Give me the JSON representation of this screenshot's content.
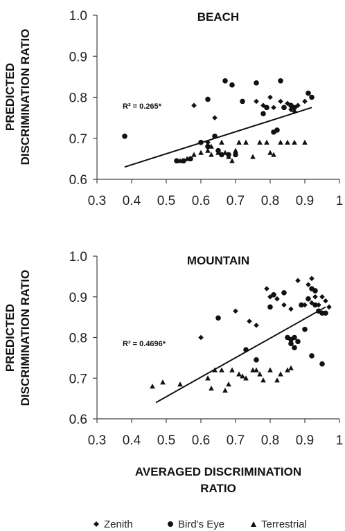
{
  "figure": {
    "shared_ylabel": [
      "PREDICTED",
      "DISCRIMINATION RATIO"
    ],
    "shared_xlabel": [
      "AVERAGED DISCRIMINATION",
      "RATIO"
    ],
    "legend": [
      {
        "symbol": "diamond",
        "label": "Zenith"
      },
      {
        "symbol": "circle",
        "label": "Bird's Eye"
      },
      {
        "symbol": "triangle",
        "label": "Terrestrial"
      }
    ]
  },
  "chart_data": [
    {
      "type": "scatter",
      "title": "BEACH",
      "xlim": [
        0.3,
        1
      ],
      "ylim": [
        0.6,
        1.0
      ],
      "xticks": [
        "0.3",
        "0.4",
        "0.5",
        "0.6",
        "0.7",
        "0.8",
        "0.9",
        "1"
      ],
      "yticks": [
        "0.6",
        "0.7",
        "0.8",
        "0.9",
        "1.0"
      ],
      "annotation": "R² = 0.265*",
      "trendline": [
        [
          0.38,
          0.63
        ],
        [
          0.92,
          0.775
        ]
      ],
      "series": [
        {
          "name": "Zenith",
          "marker": "diamond",
          "points": [
            [
              0.58,
              0.78
            ],
            [
              0.64,
              0.75
            ],
            [
              0.62,
              0.69
            ],
            [
              0.78,
              0.78
            ],
            [
              0.8,
              0.8
            ],
            [
              0.84,
              0.775
            ],
            [
              0.86,
              0.77
            ],
            [
              0.88,
              0.78
            ],
            [
              0.85,
              0.785
            ],
            [
              0.87,
              0.765
            ],
            [
              0.83,
              0.79
            ],
            [
              0.76,
              0.79
            ],
            [
              0.9,
              0.79
            ],
            [
              0.81,
              0.775
            ]
          ]
        },
        {
          "name": "Bird's Eye",
          "marker": "circle",
          "points": [
            [
              0.38,
              0.705
            ],
            [
              0.62,
              0.795
            ],
            [
              0.67,
              0.84
            ],
            [
              0.69,
              0.83
            ],
            [
              0.72,
              0.79
            ],
            [
              0.76,
              0.835
            ],
            [
              0.78,
              0.76
            ],
            [
              0.79,
              0.775
            ],
            [
              0.82,
              0.72
            ],
            [
              0.83,
              0.84
            ],
            [
              0.84,
              0.775
            ],
            [
              0.86,
              0.78
            ],
            [
              0.87,
              0.775
            ],
            [
              0.91,
              0.81
            ],
            [
              0.92,
              0.8
            ],
            [
              0.64,
              0.705
            ],
            [
              0.65,
              0.67
            ],
            [
              0.66,
              0.66
            ],
            [
              0.68,
              0.66
            ],
            [
              0.7,
              0.66
            ],
            [
              0.55,
              0.645
            ],
            [
              0.57,
              0.65
            ],
            [
              0.6,
              0.69
            ],
            [
              0.62,
              0.68
            ],
            [
              0.81,
              0.715
            ],
            [
              0.53,
              0.645
            ]
          ]
        },
        {
          "name": "Terrestrial",
          "marker": "triangle",
          "points": [
            [
              0.54,
              0.645
            ],
            [
              0.56,
              0.65
            ],
            [
              0.58,
              0.66
            ],
            [
              0.6,
              0.665
            ],
            [
              0.62,
              0.67
            ],
            [
              0.63,
              0.68
            ],
            [
              0.66,
              0.69
            ],
            [
              0.67,
              0.665
            ],
            [
              0.68,
              0.655
            ],
            [
              0.69,
              0.645
            ],
            [
              0.7,
              0.67
            ],
            [
              0.71,
              0.69
            ],
            [
              0.73,
              0.69
            ],
            [
              0.75,
              0.655
            ],
            [
              0.77,
              0.69
            ],
            [
              0.79,
              0.69
            ],
            [
              0.8,
              0.665
            ],
            [
              0.81,
              0.66
            ],
            [
              0.83,
              0.69
            ],
            [
              0.85,
              0.69
            ],
            [
              0.87,
              0.69
            ],
            [
              0.9,
              0.69
            ],
            [
              0.63,
              0.66
            ],
            [
              0.65,
              0.665
            ]
          ]
        }
      ]
    },
    {
      "type": "scatter",
      "title": "MOUNTAIN",
      "xlim": [
        0.3,
        1
      ],
      "ylim": [
        0.6,
        1.0
      ],
      "xticks": [
        "0.3",
        "0.4",
        "0.5",
        "0.6",
        "0.7",
        "0.8",
        "0.9",
        "1"
      ],
      "yticks": [
        "0.6",
        "0.7",
        "0.8",
        "0.9",
        "1.0"
      ],
      "annotation": "R² = 0.4696*",
      "trendline": [
        [
          0.47,
          0.64
        ],
        [
          0.96,
          0.875
        ]
      ],
      "series": [
        {
          "name": "Zenith",
          "marker": "diamond",
          "points": [
            [
              0.6,
              0.8
            ],
            [
              0.7,
              0.865
            ],
            [
              0.74,
              0.84
            ],
            [
              0.76,
              0.83
            ],
            [
              0.79,
              0.92
            ],
            [
              0.8,
              0.9
            ],
            [
              0.82,
              0.895
            ],
            [
              0.84,
              0.88
            ],
            [
              0.86,
              0.87
            ],
            [
              0.88,
              0.94
            ],
            [
              0.9,
              0.88
            ],
            [
              0.91,
              0.93
            ],
            [
              0.92,
              0.945
            ],
            [
              0.93,
              0.9
            ],
            [
              0.94,
              0.88
            ],
            [
              0.95,
              0.9
            ],
            [
              0.96,
              0.89
            ],
            [
              0.97,
              0.875
            ],
            [
              0.92,
              0.885
            ]
          ]
        },
        {
          "name": "Bird's Eye",
          "marker": "circle",
          "points": [
            [
              0.65,
              0.848
            ],
            [
              0.73,
              0.77
            ],
            [
              0.76,
              0.745
            ],
            [
              0.8,
              0.875
            ],
            [
              0.81,
              0.905
            ],
            [
              0.84,
              0.91
            ],
            [
              0.85,
              0.8
            ],
            [
              0.86,
              0.785
            ],
            [
              0.87,
              0.8
            ],
            [
              0.88,
              0.79
            ],
            [
              0.89,
              0.88
            ],
            [
              0.9,
              0.82
            ],
            [
              0.91,
              0.895
            ],
            [
              0.92,
              0.92
            ],
            [
              0.93,
              0.915
            ],
            [
              0.93,
              0.88
            ],
            [
              0.94,
              0.865
            ],
            [
              0.95,
              0.86
            ],
            [
              0.96,
              0.86
            ],
            [
              0.92,
              0.755
            ],
            [
              0.95,
              0.735
            ],
            [
              0.87,
              0.775
            ],
            [
              0.86,
              0.795
            ]
          ]
        },
        {
          "name": "Terrestrial",
          "marker": "triangle",
          "points": [
            [
              0.46,
              0.68
            ],
            [
              0.49,
              0.69
            ],
            [
              0.54,
              0.685
            ],
            [
              0.62,
              0.7
            ],
            [
              0.63,
              0.675
            ],
            [
              0.64,
              0.72
            ],
            [
              0.66,
              0.72
            ],
            [
              0.67,
              0.67
            ],
            [
              0.68,
              0.685
            ],
            [
              0.69,
              0.72
            ],
            [
              0.71,
              0.71
            ],
            [
              0.72,
              0.705
            ],
            [
              0.73,
              0.7
            ],
            [
              0.75,
              0.72
            ],
            [
              0.77,
              0.71
            ],
            [
              0.78,
              0.695
            ],
            [
              0.8,
              0.72
            ],
            [
              0.82,
              0.695
            ],
            [
              0.83,
              0.71
            ],
            [
              0.85,
              0.72
            ],
            [
              0.86,
              0.725
            ],
            [
              0.76,
              0.72
            ]
          ]
        }
      ]
    }
  ]
}
